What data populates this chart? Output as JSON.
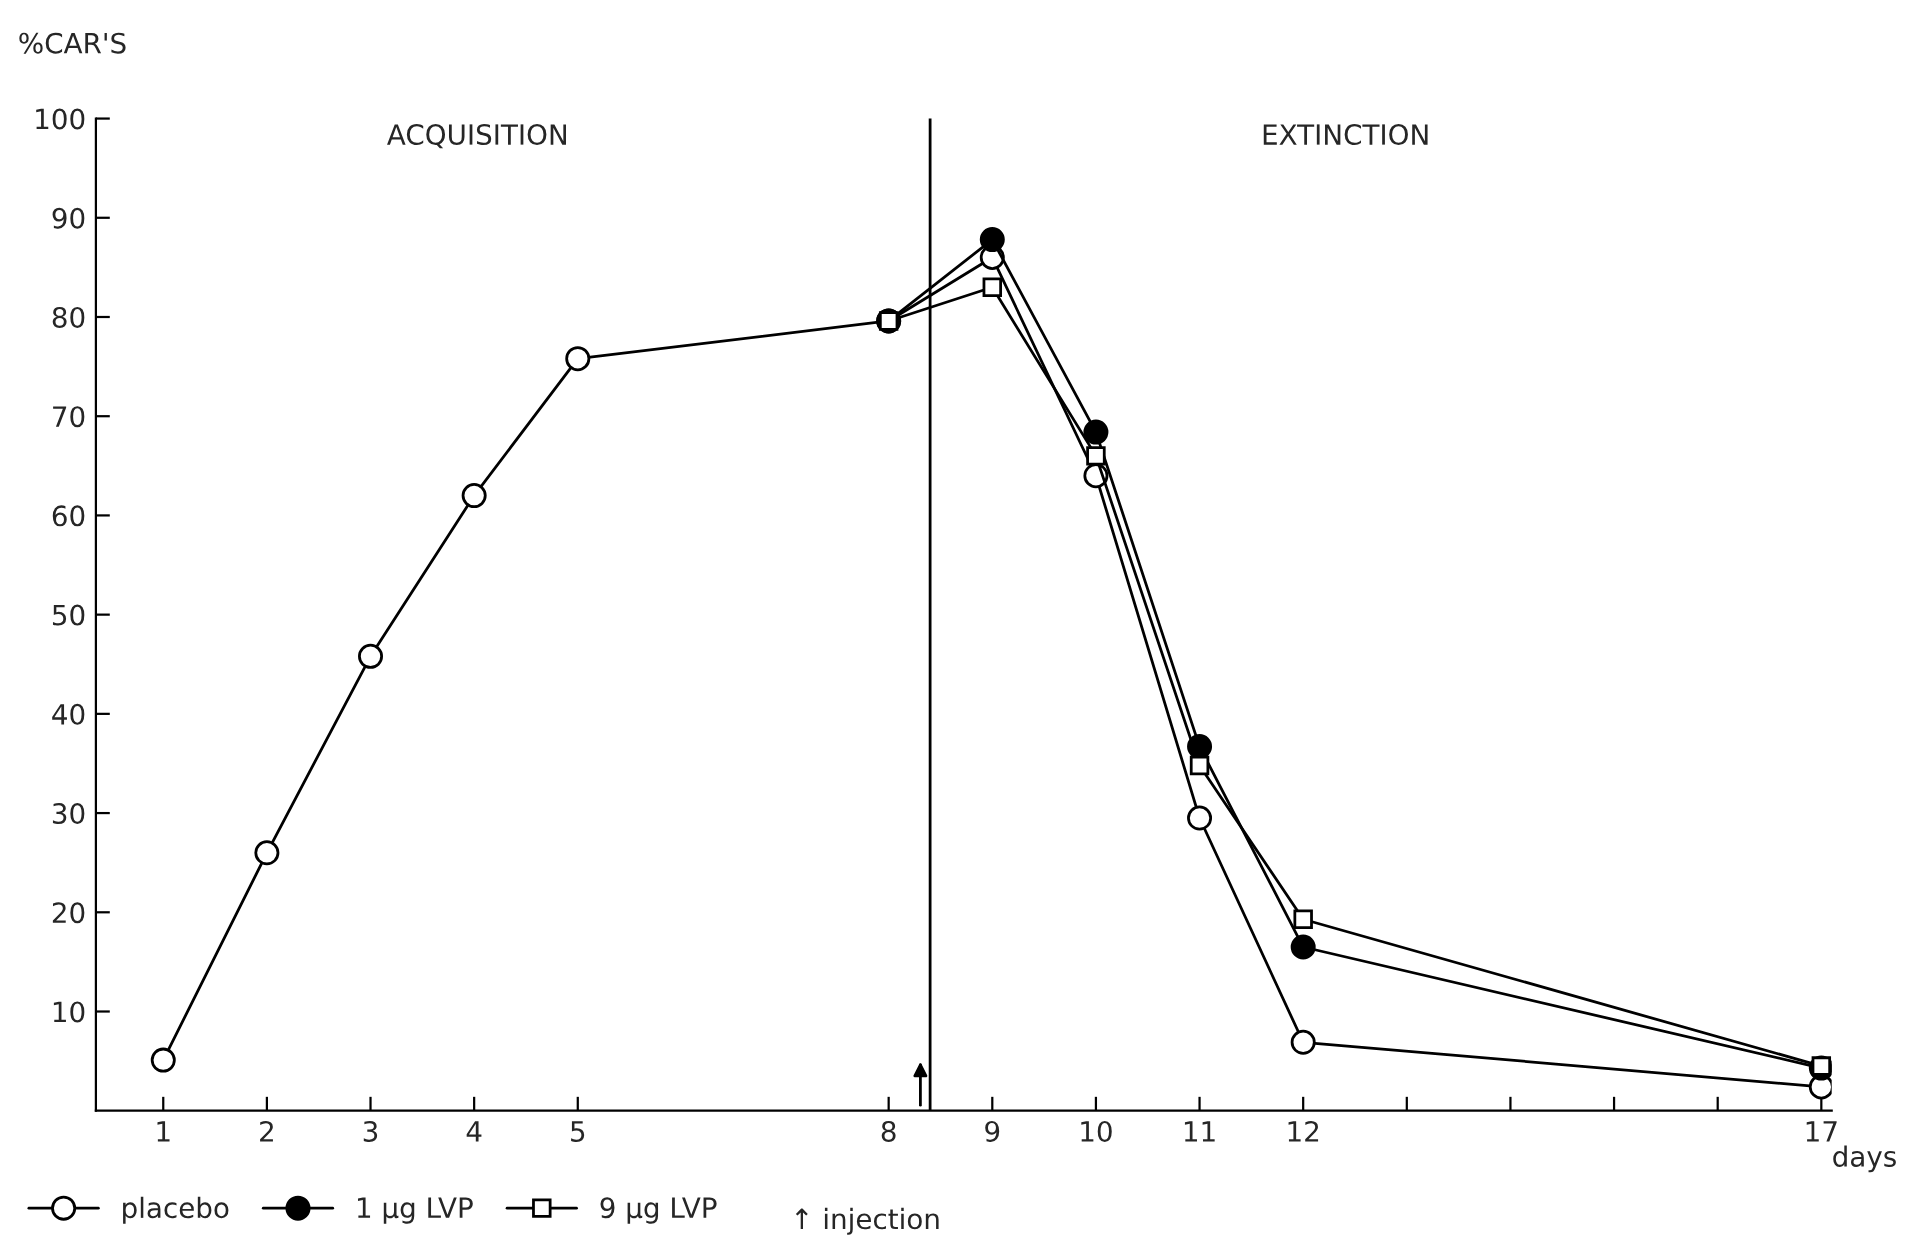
{
  "chart_data": {
    "type": "line",
    "ylabel": "%CAR'S",
    "xlabel": "days",
    "annotations": [
      "ACQUISITION",
      "EXTINCTION",
      "↑ injection"
    ],
    "xlim": [
      0.35,
      17.1
    ],
    "ylim": [
      0,
      100
    ],
    "xticks": [
      1,
      2,
      3,
      4,
      5,
      8,
      9,
      10,
      11,
      12,
      {
        "value": 13,
        "label": null
      },
      {
        "value": 14,
        "label": null
      },
      {
        "value": 15,
        "label": null
      },
      {
        "value": 16,
        "label": null
      },
      17
    ],
    "yticks": [
      10,
      20,
      30,
      40,
      50,
      60,
      70,
      80,
      90,
      100
    ],
    "series": [
      {
        "name": "placebo",
        "color": "#ffffff",
        "marker": "circle",
        "x": [
          1,
          2,
          3,
          4,
          5,
          8,
          9,
          10,
          11,
          12,
          17
        ],
        "values": [
          5.1,
          26,
          45.8,
          62,
          75.8,
          79.6,
          86,
          64,
          29.5,
          6.9,
          2.4
        ]
      },
      {
        "name": "1 μg LVP",
        "color": "#000000",
        "marker": "circle",
        "x": [
          8,
          9,
          10,
          11,
          12,
          17
        ],
        "values": [
          79.6,
          87.8,
          68.4,
          36.7,
          16.5,
          4.3
        ]
      },
      {
        "name": "9 μg LVP",
        "color": "#ffffff",
        "marker": "square",
        "x": [
          8,
          9,
          10,
          11,
          12,
          17
        ],
        "values": [
          79.6,
          83,
          66,
          34.8,
          19.3,
          4.5
        ]
      }
    ],
    "ref_lines": [
      {
        "axis": "x",
        "value": 8.4,
        "color": "#000000"
      }
    ],
    "legend": "bottom",
    "grid": false
  }
}
